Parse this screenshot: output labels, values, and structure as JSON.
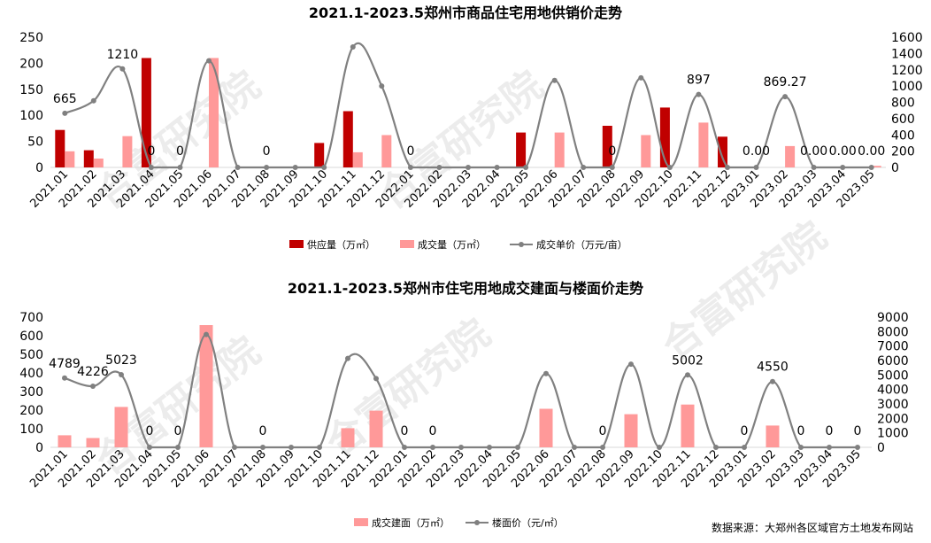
{
  "colors": {
    "supply": "#c00000",
    "deal": "#ff9999",
    "line": "#808080",
    "axis_text": "#000000",
    "watermark": "#c8c8c8"
  },
  "watermark": "合富研究院",
  "source_note": "数据来源：大郑州各区域官方土地发布网站",
  "chart_data": [
    {
      "type": "bar",
      "title": "2021.1-2023.5郑州市商品住宅用地供销价走势",
      "categories": [
        "2021.01",
        "2021.02",
        "2021.03",
        "2021.04",
        "2021.05",
        "2021.06",
        "2021.07",
        "2021.08",
        "2021.09",
        "2021.10",
        "2021.11",
        "2021.12",
        "2022.01",
        "2022.02",
        "2022.03",
        "2022.04",
        "2022.05",
        "2022.06",
        "2022.07",
        "2022.08",
        "2022.09",
        "2022.10",
        "2022.11",
        "2022.12",
        "2023.01",
        "2023.02",
        "2023.03",
        "2023.04",
        "2023.05"
      ],
      "y_left": {
        "min": 0,
        "max": 250,
        "ticks": [
          0,
          50,
          100,
          150,
          200,
          250
        ]
      },
      "y_right": {
        "min": 0,
        "max": 1600,
        "ticks": [
          0,
          200,
          400,
          600,
          800,
          1000,
          1200,
          1400,
          1600
        ]
      },
      "series": [
        {
          "name": "供应量（万㎡）",
          "kind": "bar",
          "axis": "left",
          "color_key": "supply",
          "values": [
            72,
            33,
            0,
            210,
            0,
            0,
            0,
            0,
            0,
            47,
            108,
            0,
            0,
            0,
            0,
            0,
            67,
            0,
            0,
            80,
            0,
            115,
            0,
            59,
            0,
            0,
            0,
            0,
            0
          ]
        },
        {
          "name": "成交量（万㎡）",
          "kind": "bar",
          "axis": "left",
          "color_key": "deal",
          "values": [
            31,
            17,
            60,
            0,
            0,
            210,
            0,
            0,
            0,
            0,
            29,
            62,
            0,
            0,
            0,
            0,
            0,
            67,
            0,
            0,
            62,
            0,
            86,
            0,
            0,
            41,
            0,
            0,
            3
          ]
        },
        {
          "name": "成交单价（万元/亩）",
          "kind": "line",
          "axis": "right",
          "color_key": "line",
          "values": [
            665,
            820,
            1210,
            0,
            0,
            1310,
            0,
            0,
            0,
            0,
            1480,
            1000,
            0,
            0,
            0,
            0,
            0,
            1070,
            0,
            0,
            1100,
            0,
            897,
            0,
            0,
            869.27,
            0,
            0,
            0
          ]
        }
      ],
      "data_labels": [
        {
          "index": 0,
          "text": "665"
        },
        {
          "index": 2,
          "text": "1210"
        },
        {
          "index": 3,
          "text": "0"
        },
        {
          "index": 4,
          "text": "0"
        },
        {
          "index": 7,
          "text": "0"
        },
        {
          "index": 12,
          "text": "0"
        },
        {
          "index": 19,
          "text": "0"
        },
        {
          "index": 22,
          "text": "897"
        },
        {
          "index": 24,
          "text": "0.00"
        },
        {
          "index": 25,
          "text": "869.27"
        },
        {
          "index": 26,
          "text": "0.00"
        },
        {
          "index": 27,
          "text": "0.00"
        },
        {
          "index": 28,
          "text": "0.00"
        }
      ]
    },
    {
      "type": "bar",
      "title": "2021.1-2023.5郑州市住宅用地成交建面与楼面价走势",
      "categories": [
        "2021.01",
        "2021.02",
        "2021.03",
        "2021.04",
        "2021.05",
        "2021.06",
        "2021.07",
        "2021.08",
        "2021.09",
        "2021.10",
        "2021.11",
        "2021.12",
        "2022.01",
        "2022.02",
        "2022.03",
        "2022.04",
        "2022.05",
        "2022.06",
        "2022.07",
        "2022.08",
        "2022.09",
        "2022.10",
        "2022.11",
        "2022.12",
        "2023.01",
        "2023.02",
        "2023.03",
        "2023.04",
        "2023.05"
      ],
      "y_left": {
        "min": 0,
        "max": 700,
        "ticks": [
          0,
          100,
          200,
          300,
          400,
          500,
          600,
          700
        ]
      },
      "y_right": {
        "min": 0,
        "max": 9000,
        "ticks": [
          0,
          1000,
          2000,
          3000,
          4000,
          5000,
          6000,
          7000,
          8000,
          9000
        ]
      },
      "series": [
        {
          "name": "成交建面（万㎡）",
          "kind": "bar",
          "axis": "left",
          "color_key": "deal",
          "values": [
            65,
            50,
            217,
            0,
            0,
            657,
            0,
            0,
            0,
            0,
            103,
            197,
            0,
            0,
            0,
            0,
            0,
            207,
            0,
            0,
            178,
            0,
            230,
            0,
            0,
            117,
            0,
            0,
            0
          ]
        },
        {
          "name": "楼面价（元/㎡）",
          "kind": "line",
          "axis": "right",
          "color_key": "line",
          "values": [
            4789,
            4226,
            5023,
            0,
            0,
            7800,
            0,
            0,
            0,
            0,
            6150,
            4750,
            0,
            0,
            0,
            0,
            0,
            5100,
            0,
            0,
            5750,
            0,
            5002,
            0,
            0,
            4550,
            0,
            0,
            0
          ]
        }
      ],
      "data_labels": [
        {
          "index": 0,
          "text": "4789"
        },
        {
          "index": 1,
          "text": "4226"
        },
        {
          "index": 2,
          "text": "5023"
        },
        {
          "index": 3,
          "text": "0"
        },
        {
          "index": 4,
          "text": "0"
        },
        {
          "index": 7,
          "text": "0"
        },
        {
          "index": 12,
          "text": "0"
        },
        {
          "index": 13,
          "text": "0"
        },
        {
          "index": 19,
          "text": "0"
        },
        {
          "index": 22,
          "text": "5002"
        },
        {
          "index": 24,
          "text": "0"
        },
        {
          "index": 25,
          "text": "4550"
        },
        {
          "index": 26,
          "text": "0"
        },
        {
          "index": 27,
          "text": "0"
        },
        {
          "index": 28,
          "text": "0"
        }
      ]
    }
  ]
}
